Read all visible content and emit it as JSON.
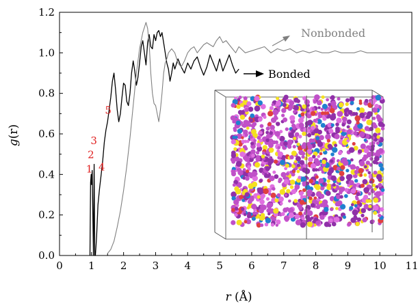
{
  "chart_data": {
    "type": "line",
    "xlabel": "r (Å)",
    "xlabel_var": "r",
    "xlabel_unit": "(Å)",
    "ylabel": "g(r)",
    "ylabel_var": "g",
    "ylabel_arg": "(r)",
    "xlim": [
      0,
      11
    ],
    "ylim": [
      0,
      1.2
    ],
    "x_ticks": [
      "0",
      "1",
      "2",
      "3",
      "4",
      "5",
      "6",
      "7",
      "8",
      "9",
      "10",
      "11"
    ],
    "y_ticks": [
      "0.0",
      "0.2",
      "0.4",
      "0.6",
      "0.8",
      "1.0",
      "1.2"
    ],
    "grid": false,
    "series": [
      {
        "name": "Bonded",
        "color": "#000000",
        "x": [
          0.95,
          0.97,
          0.99,
          1.0,
          1.02,
          1.04,
          1.06,
          1.08,
          1.1,
          1.12,
          1.14,
          1.16,
          1.2,
          1.25,
          1.3,
          1.35,
          1.4,
          1.45,
          1.5,
          1.55,
          1.6,
          1.65,
          1.7,
          1.75,
          1.8,
          1.85,
          1.9,
          1.95,
          2.0,
          2.05,
          2.1,
          2.15,
          2.2,
          2.25,
          2.3,
          2.35,
          2.4,
          2.45,
          2.5,
          2.55,
          2.6,
          2.65,
          2.7,
          2.75,
          2.8,
          2.85,
          2.9,
          2.95,
          3.0,
          3.05,
          3.1,
          3.15,
          3.2,
          3.25,
          3.3,
          3.35,
          3.4,
          3.45,
          3.5,
          3.55,
          3.6,
          3.7,
          3.8,
          3.9,
          4.0,
          4.1,
          4.2,
          4.3,
          4.4,
          4.5,
          4.6,
          4.7,
          4.8,
          4.9,
          5.0,
          5.1,
          5.2,
          5.3,
          5.4,
          5.5,
          5.6
        ],
        "y": [
          0.0,
          0.36,
          0.4,
          0.35,
          0.42,
          0.2,
          0.0,
          0.45,
          0.0,
          0.0,
          0.05,
          0.1,
          0.25,
          0.33,
          0.4,
          0.47,
          0.56,
          0.62,
          0.66,
          0.72,
          0.78,
          0.86,
          0.9,
          0.82,
          0.72,
          0.66,
          0.7,
          0.78,
          0.85,
          0.84,
          0.76,
          0.74,
          0.8,
          0.9,
          0.96,
          0.91,
          0.84,
          0.88,
          0.95,
          1.03,
          1.06,
          1.0,
          0.94,
          1.05,
          1.09,
          1.03,
          1.02,
          1.09,
          1.06,
          1.1,
          1.11,
          1.08,
          1.1,
          1.05,
          1.0,
          0.95,
          0.92,
          0.86,
          0.9,
          0.95,
          0.92,
          0.97,
          0.93,
          0.9,
          0.95,
          0.92,
          0.96,
          0.98,
          0.93,
          0.89,
          0.93,
          0.99,
          0.95,
          0.91,
          0.97,
          0.91,
          0.95,
          0.99,
          0.94,
          0.9,
          0.92
        ]
      },
      {
        "name": "Nonbonded",
        "color": "#808080",
        "x": [
          1.5,
          1.6,
          1.7,
          1.8,
          1.9,
          2.0,
          2.1,
          2.2,
          2.3,
          2.4,
          2.5,
          2.6,
          2.7,
          2.75,
          2.8,
          2.85,
          2.9,
          2.95,
          3.0,
          3.05,
          3.1,
          3.15,
          3.2,
          3.25,
          3.3,
          3.35,
          3.4,
          3.5,
          3.6,
          3.7,
          3.8,
          3.9,
          4.0,
          4.1,
          4.2,
          4.3,
          4.4,
          4.5,
          4.6,
          4.7,
          4.8,
          4.9,
          5.0,
          5.1,
          5.2,
          5.3,
          5.4,
          5.5,
          5.6,
          5.8,
          6.0,
          6.2,
          6.4,
          6.6,
          6.8,
          7.0,
          7.2,
          7.4,
          7.6,
          7.8,
          8.0,
          8.2,
          8.4,
          8.6,
          8.8,
          9.0,
          9.2,
          9.4,
          9.6,
          9.8,
          10.0,
          10.2,
          10.4,
          10.6,
          10.8,
          11.0
        ],
        "y": [
          0.01,
          0.03,
          0.07,
          0.14,
          0.22,
          0.32,
          0.44,
          0.58,
          0.74,
          0.9,
          1.02,
          1.1,
          1.15,
          1.12,
          1.04,
          0.9,
          0.8,
          0.75,
          0.74,
          0.7,
          0.66,
          0.72,
          0.8,
          0.9,
          0.95,
          0.97,
          1.0,
          1.02,
          1.0,
          0.95,
          0.93,
          0.96,
          1.0,
          1.02,
          1.03,
          1.0,
          1.02,
          1.04,
          1.05,
          1.04,
          1.03,
          1.06,
          1.08,
          1.05,
          1.06,
          1.04,
          1.02,
          1.0,
          1.03,
          1.0,
          1.01,
          1.02,
          1.03,
          1.0,
          1.02,
          1.01,
          1.02,
          1.0,
          1.01,
          1.0,
          1.01,
          1.0,
          1.0,
          1.01,
          1.0,
          1.0,
          1.0,
          1.01,
          1.0,
          1.0,
          1.0,
          1.0,
          1.0,
          1.0,
          1.0,
          1.0
        ]
      }
    ],
    "annotations": [
      {
        "text": "1",
        "x": 0.93,
        "y": 0.41
      },
      {
        "text": "2",
        "x": 0.98,
        "y": 0.48
      },
      {
        "text": "3",
        "x": 1.07,
        "y": 0.55
      },
      {
        "text": "4",
        "x": 1.32,
        "y": 0.42
      },
      {
        "text": "5",
        "x": 1.52,
        "y": 0.7
      }
    ],
    "legend": [
      {
        "text": "Nonbonded",
        "color": "#808080"
      },
      {
        "text": "Bonded",
        "color": "#000000"
      }
    ],
    "inset": {
      "type": "molecular-box",
      "colors": [
        "#c050c8",
        "#9030a8",
        "#e070e0",
        "#f4e020",
        "#2080d0",
        "#e04040"
      ]
    }
  }
}
